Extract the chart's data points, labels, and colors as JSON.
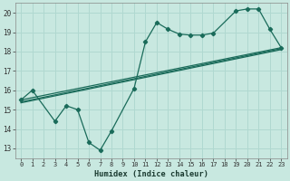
{
  "bg_color": "#c8e8e0",
  "grid_color": "#b0d8d0",
  "line_color": "#1a6b5a",
  "xlabel": "Humidex (Indice chaleur)",
  "xlim": [
    -0.5,
    23.5
  ],
  "ylim": [
    12.5,
    20.5
  ],
  "xticks": [
    0,
    1,
    2,
    3,
    4,
    5,
    6,
    7,
    8,
    9,
    10,
    11,
    12,
    13,
    14,
    15,
    16,
    17,
    18,
    19,
    20,
    21,
    22,
    23
  ],
  "yticks": [
    13,
    14,
    15,
    16,
    17,
    18,
    19,
    20
  ],
  "jagged": {
    "x": [
      0,
      1,
      3,
      4,
      5,
      6,
      7,
      8,
      10,
      11,
      12,
      13,
      14,
      15,
      16,
      17,
      19,
      20,
      21,
      22,
      23
    ],
    "y": [
      15.5,
      16.0,
      14.4,
      15.2,
      15.0,
      13.3,
      12.9,
      13.9,
      16.1,
      18.5,
      19.5,
      19.15,
      18.9,
      18.85,
      18.85,
      18.95,
      20.1,
      20.2,
      20.2,
      19.15,
      18.2
    ]
  },
  "trend1": {
    "x": [
      0,
      23
    ],
    "y": [
      15.5,
      18.2
    ]
  },
  "trend2": {
    "x": [
      0,
      23
    ],
    "y": [
      15.4,
      18.15
    ]
  },
  "trend3": {
    "x": [
      0,
      23
    ],
    "y": [
      15.35,
      18.1
    ]
  }
}
